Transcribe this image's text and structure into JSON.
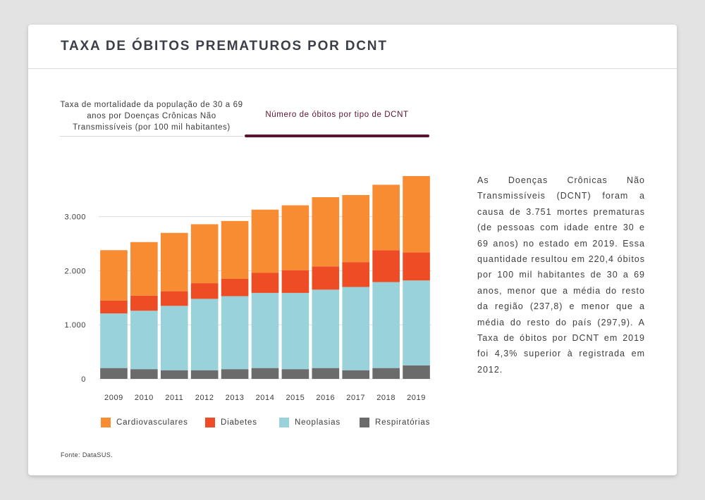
{
  "page": {
    "title": "TAXA DE ÓBITOS PREMATUROS POR DCNT",
    "source": "Fonte: DataSUS."
  },
  "tabs": [
    {
      "label": "Taxa de mortalidade da população de 30 a 69 anos por Doenças Crônicas Não Transmissíveis (por 100 mil habitantes)",
      "active": false
    },
    {
      "label": "Número de óbitos por tipo de DCNT",
      "active": true
    }
  ],
  "colors": {
    "active_tab": "#5c1231"
  },
  "description": "As Doenças Crônicas Não Transmissíveis (DCNT) foram a causa de 3.751 mortes prematuras (de pessoas com idade entre 30 e 69 anos) no estado em 2019. Essa quantidade resultou em 220,4 óbitos por 100 mil habitantes de 30 a 69 anos, menor que a média do resto da região (237,8) e menor que a média do resto do país (297,9). A Taxa de óbitos por DCNT em 2019 foi 4,3% superior à registrada em 2012.",
  "chart_data": {
    "type": "bar",
    "stacked": true,
    "categories": [
      "2009",
      "2010",
      "2011",
      "2012",
      "2013",
      "2014",
      "2015",
      "2016",
      "2017",
      "2018",
      "2019"
    ],
    "series": [
      {
        "name": "Respiratórias",
        "color": "#6b6b6b",
        "values": [
          200,
          180,
          160,
          160,
          180,
          200,
          180,
          200,
          160,
          200,
          250
        ]
      },
      {
        "name": "Neoplasias",
        "color": "#99d2da",
        "values": [
          1010,
          1080,
          1190,
          1320,
          1350,
          1390,
          1410,
          1450,
          1540,
          1590,
          1570
        ]
      },
      {
        "name": "Diabetes",
        "color": "#ee4c25",
        "values": [
          240,
          280,
          270,
          290,
          320,
          370,
          420,
          430,
          460,
          590,
          520
        ]
      },
      {
        "name": "Cardiovasculares",
        "color": "#f78c32",
        "values": [
          930,
          990,
          1080,
          1090,
          1070,
          1170,
          1200,
          1280,
          1240,
          1210,
          1411
        ]
      }
    ],
    "legend_order": [
      "Cardiovasculares",
      "Diabetes",
      "Neoplasias",
      "Respiratórias"
    ],
    "yticks": [
      "0",
      "1.000",
      "2.000",
      "3.000"
    ],
    "ytick_values": [
      0,
      1000,
      2000,
      3000
    ],
    "ylim": [
      0,
      3751
    ],
    "grid": true,
    "legend_position": "bottom"
  }
}
